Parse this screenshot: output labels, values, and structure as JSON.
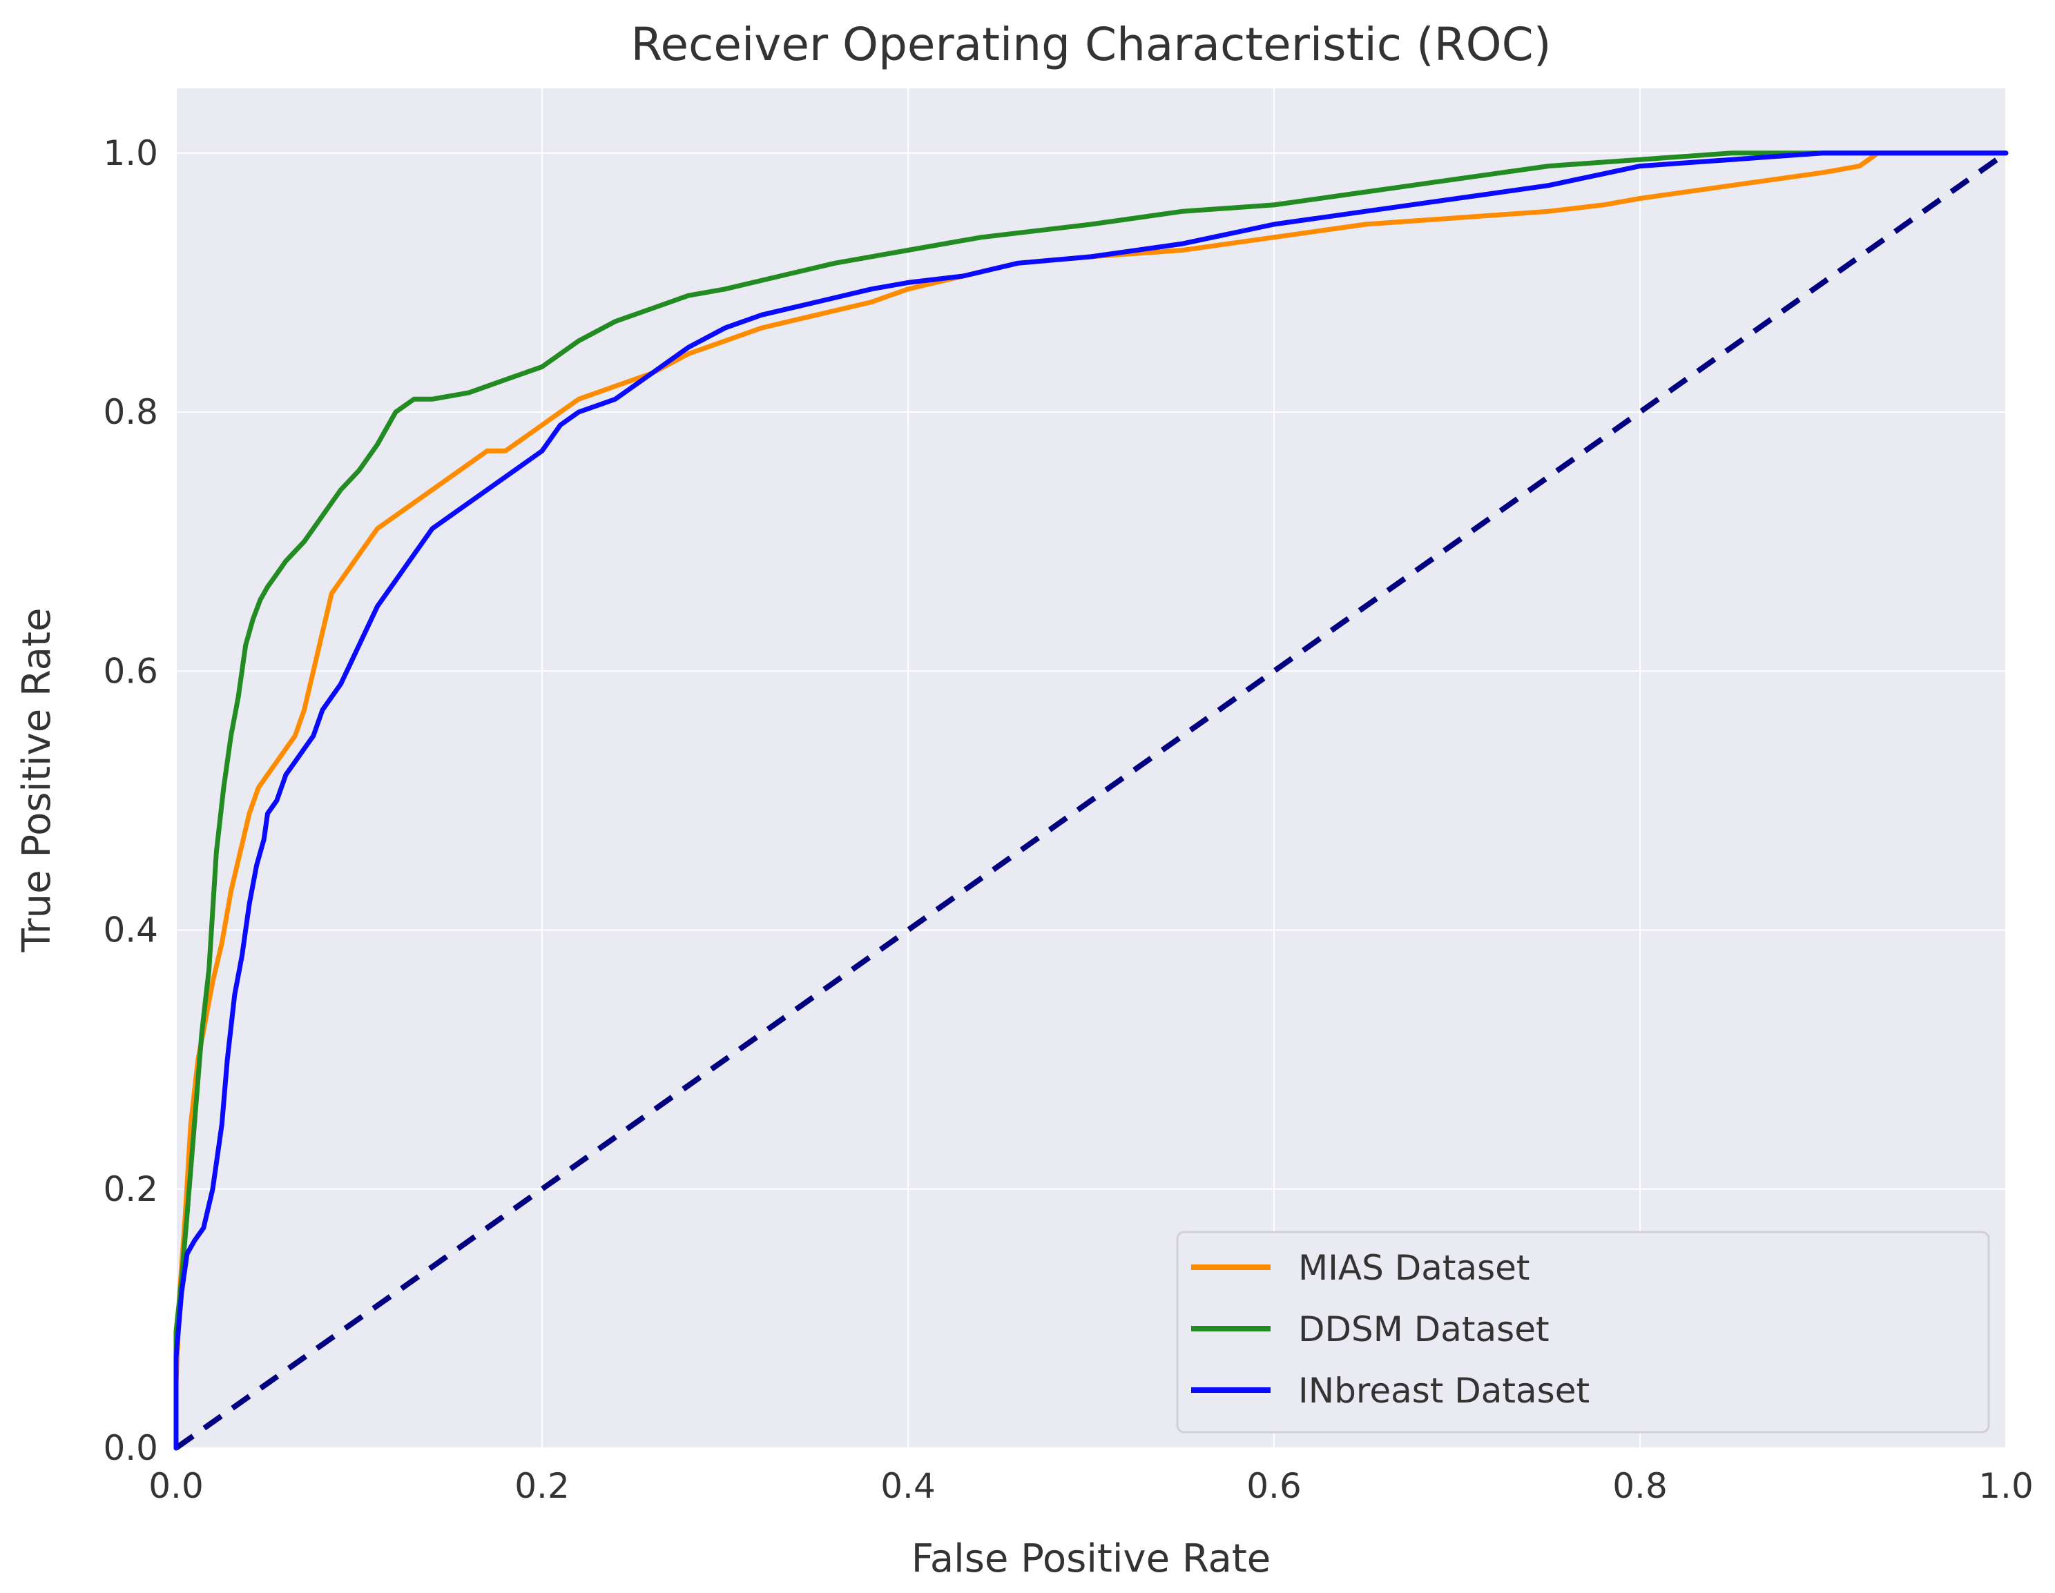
{
  "chart_data": {
    "type": "line",
    "title": "Receiver Operating Characteristic (ROC)",
    "xlabel": "False Positive Rate",
    "ylabel": "True Positive Rate",
    "xlim": [
      0.0,
      1.0
    ],
    "ylim": [
      0.0,
      1.05
    ],
    "x_ticks": [
      "0.0",
      "0.2",
      "0.4",
      "0.6",
      "0.8",
      "1.0"
    ],
    "y_ticks": [
      "0.0",
      "0.2",
      "0.4",
      "0.6",
      "0.8",
      "1.0"
    ],
    "grid": true,
    "legend_position": "lower-right",
    "background_color": "#eaeaf2",
    "series": [
      {
        "name": "MIAS Dataset",
        "color": "#ff8c00",
        "x": [
          0.0,
          0.0,
          0.002,
          0.005,
          0.008,
          0.012,
          0.016,
          0.02,
          0.025,
          0.03,
          0.035,
          0.04,
          0.045,
          0.05,
          0.055,
          0.06,
          0.065,
          0.07,
          0.075,
          0.08,
          0.085,
          0.09,
          0.095,
          0.1,
          0.11,
          0.12,
          0.13,
          0.14,
          0.15,
          0.16,
          0.17,
          0.18,
          0.19,
          0.2,
          0.21,
          0.22,
          0.23,
          0.24,
          0.26,
          0.28,
          0.3,
          0.32,
          0.35,
          0.38,
          0.4,
          0.43,
          0.46,
          0.5,
          0.55,
          0.6,
          0.65,
          0.7,
          0.75,
          0.78,
          0.8,
          0.85,
          0.9,
          0.92,
          0.93,
          0.95,
          1.0
        ],
        "y": [
          0.0,
          0.05,
          0.12,
          0.18,
          0.25,
          0.3,
          0.33,
          0.36,
          0.39,
          0.43,
          0.46,
          0.49,
          0.51,
          0.52,
          0.53,
          0.54,
          0.55,
          0.57,
          0.6,
          0.63,
          0.66,
          0.67,
          0.68,
          0.69,
          0.71,
          0.72,
          0.73,
          0.74,
          0.75,
          0.76,
          0.77,
          0.77,
          0.78,
          0.79,
          0.8,
          0.81,
          0.815,
          0.82,
          0.83,
          0.845,
          0.855,
          0.865,
          0.875,
          0.885,
          0.895,
          0.905,
          0.915,
          0.92,
          0.925,
          0.935,
          0.945,
          0.95,
          0.955,
          0.96,
          0.965,
          0.975,
          0.985,
          0.99,
          1.0,
          1.0,
          1.0
        ]
      },
      {
        "name": "DDSM Dataset",
        "color": "#228b22",
        "x": [
          0.0,
          0.0,
          0.003,
          0.006,
          0.01,
          0.014,
          0.018,
          0.022,
          0.026,
          0.03,
          0.034,
          0.038,
          0.042,
          0.046,
          0.05,
          0.055,
          0.06,
          0.07,
          0.08,
          0.09,
          0.1,
          0.11,
          0.12,
          0.13,
          0.14,
          0.16,
          0.18,
          0.2,
          0.22,
          0.24,
          0.26,
          0.28,
          0.3,
          0.33,
          0.36,
          0.4,
          0.44,
          0.5,
          0.55,
          0.6,
          0.65,
          0.7,
          0.75,
          0.8,
          0.85,
          0.9,
          0.95,
          1.0
        ],
        "y": [
          0.0,
          0.09,
          0.13,
          0.18,
          0.25,
          0.32,
          0.37,
          0.46,
          0.51,
          0.55,
          0.58,
          0.62,
          0.64,
          0.655,
          0.665,
          0.675,
          0.685,
          0.7,
          0.72,
          0.74,
          0.755,
          0.775,
          0.8,
          0.81,
          0.81,
          0.815,
          0.825,
          0.835,
          0.855,
          0.87,
          0.88,
          0.89,
          0.895,
          0.905,
          0.915,
          0.925,
          0.935,
          0.945,
          0.955,
          0.96,
          0.97,
          0.98,
          0.99,
          0.995,
          1.0,
          1.0,
          1.0,
          1.0
        ]
      },
      {
        "name": "INbreast Dataset",
        "color": "#0a0aff",
        "x": [
          0.0,
          0.0,
          0.003,
          0.006,
          0.01,
          0.015,
          0.02,
          0.025,
          0.028,
          0.032,
          0.036,
          0.04,
          0.044,
          0.048,
          0.05,
          0.055,
          0.06,
          0.065,
          0.07,
          0.075,
          0.08,
          0.09,
          0.1,
          0.11,
          0.12,
          0.13,
          0.14,
          0.15,
          0.16,
          0.17,
          0.18,
          0.19,
          0.2,
          0.21,
          0.22,
          0.23,
          0.24,
          0.26,
          0.28,
          0.3,
          0.32,
          0.35,
          0.38,
          0.4,
          0.43,
          0.46,
          0.5,
          0.55,
          0.6,
          0.65,
          0.7,
          0.75,
          0.8,
          0.85,
          0.9,
          0.95,
          1.0
        ],
        "y": [
          0.0,
          0.07,
          0.12,
          0.15,
          0.16,
          0.17,
          0.2,
          0.25,
          0.3,
          0.35,
          0.38,
          0.42,
          0.45,
          0.47,
          0.49,
          0.5,
          0.52,
          0.53,
          0.54,
          0.55,
          0.57,
          0.59,
          0.62,
          0.65,
          0.67,
          0.69,
          0.71,
          0.72,
          0.73,
          0.74,
          0.75,
          0.76,
          0.77,
          0.79,
          0.8,
          0.805,
          0.81,
          0.83,
          0.85,
          0.865,
          0.875,
          0.885,
          0.895,
          0.9,
          0.905,
          0.915,
          0.92,
          0.93,
          0.945,
          0.955,
          0.965,
          0.975,
          0.99,
          0.995,
          1.0,
          1.0,
          1.0
        ]
      }
    ],
    "reference_line": {
      "x": [
        0.0,
        1.0
      ],
      "y": [
        0.0,
        1.0
      ],
      "color": "#000080",
      "style": "dashed"
    }
  }
}
